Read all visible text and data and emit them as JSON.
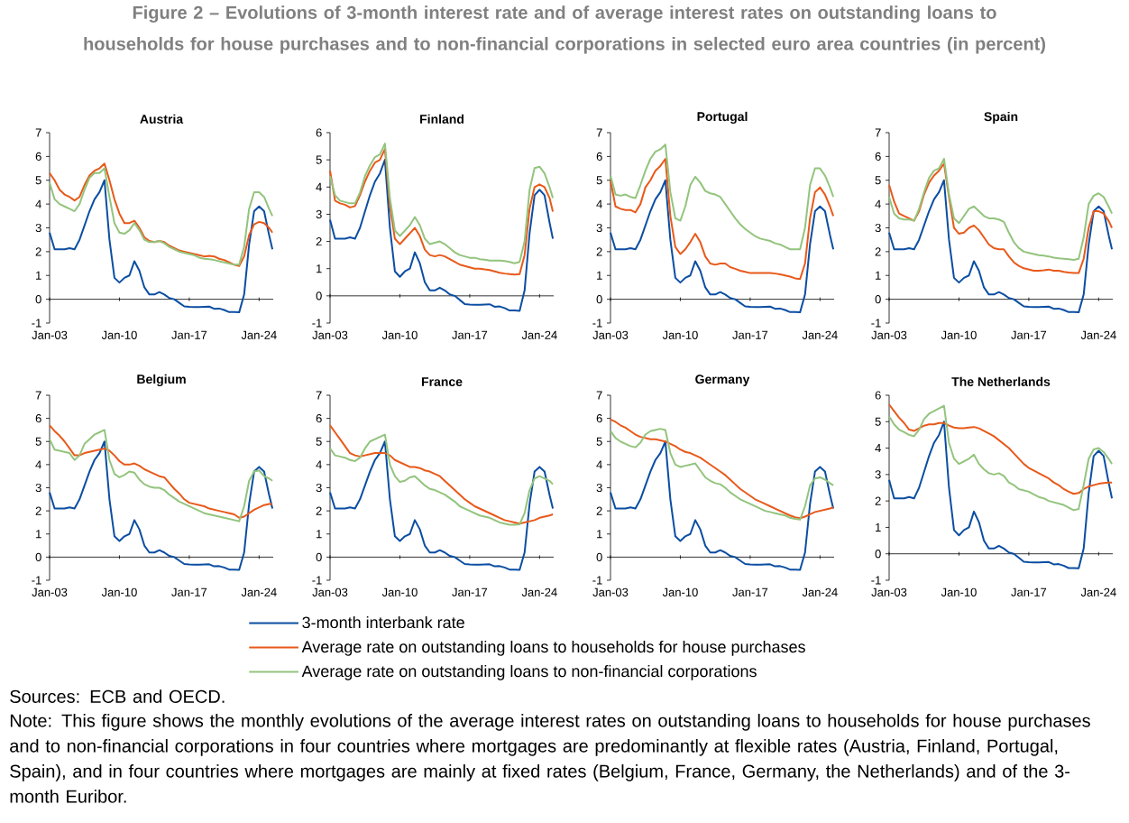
{
  "chart_data": [
    {
      "type": "line",
      "title": "Austria",
      "legend": "bottom",
      "annotations": [
        "Figure 2 – Evolutions of 3-month interest rate and of average interest rates on outstanding loans to households for house purchases and to non-financial corporations in selected euro area countries (in percent)",
        "Sources: ECB and OECD.",
        "Note: This figure shows the monthly evolutions of the average interest rates on outstanding loans to households for house purchases and to non-financial corporations in four countries where mortgages are predominantly at flexible rates (Austria, Finland, Portugal, Spain), and in four countries where mortgages are mainly at fixed rates (Belgium, France, Germany, the Netherlands) and of the 3-month Euribor."
      ],
      "xlim": [
        "2003-01",
        "2025-06"
      ],
      "ylim": [
        -1,
        7
      ],
      "yticks": [
        -1,
        0,
        1,
        2,
        3,
        4,
        5,
        6,
        7
      ],
      "xticks": [
        {
          "value": "2003-01",
          "label": "Jan-03"
        },
        {
          "value": "2010-01",
          "label": "Jan-10"
        },
        {
          "value": "2017-01",
          "label": "Jan-17"
        },
        {
          "value": "2024-01",
          "label": "Jan-24"
        }
      ],
      "x": [
        "2003-01",
        "2003-07",
        "2004-01",
        "2004-07",
        "2005-01",
        "2005-07",
        "2006-01",
        "2006-07",
        "2007-01",
        "2007-07",
        "2008-01",
        "2008-07",
        "2009-01",
        "2009-07",
        "2010-01",
        "2010-07",
        "2011-01",
        "2011-07",
        "2012-01",
        "2012-07",
        "2013-01",
        "2013-07",
        "2014-01",
        "2014-07",
        "2015-01",
        "2015-07",
        "2016-01",
        "2016-07",
        "2017-01",
        "2017-07",
        "2018-01",
        "2018-07",
        "2019-01",
        "2019-07",
        "2020-01",
        "2020-07",
        "2021-01",
        "2021-07",
        "2022-01",
        "2022-07",
        "2023-01",
        "2023-07",
        "2024-01",
        "2024-07",
        "2025-01",
        "2025-05"
      ],
      "series": [
        {
          "name": "3-month interbank rate",
          "color": "#0b4ea2",
          "values": [
            2.8,
            2.1,
            2.1,
            2.1,
            2.15,
            2.1,
            2.5,
            3.1,
            3.7,
            4.2,
            4.5,
            5.0,
            2.5,
            0.9,
            0.7,
            0.9,
            1.0,
            1.6,
            1.2,
            0.5,
            0.2,
            0.2,
            0.3,
            0.2,
            0.05,
            0.0,
            -0.15,
            -0.3,
            -0.32,
            -0.33,
            -0.33,
            -0.32,
            -0.31,
            -0.4,
            -0.39,
            -0.45,
            -0.54,
            -0.54,
            -0.55,
            0.2,
            2.3,
            3.7,
            3.9,
            3.7,
            2.7,
            2.1
          ]
        },
        {
          "name": "Average rate on outstanding loans to households for house purchases",
          "color": "#e8591a",
          "values": [
            5.3,
            5.0,
            4.6,
            4.4,
            4.3,
            4.15,
            4.3,
            4.8,
            5.2,
            5.4,
            5.5,
            5.7,
            5.0,
            4.2,
            3.6,
            3.2,
            3.2,
            3.3,
            3.0,
            2.6,
            2.45,
            2.4,
            2.45,
            2.4,
            2.25,
            2.15,
            2.05,
            2.0,
            1.95,
            1.9,
            1.85,
            1.8,
            1.82,
            1.8,
            1.7,
            1.65,
            1.55,
            1.45,
            1.4,
            1.8,
            2.7,
            3.15,
            3.25,
            3.2,
            3.0,
            2.8
          ]
        },
        {
          "name": "Average rate on outstanding loans to non-financial corporations",
          "color": "#93c47d",
          "values": [
            4.9,
            4.2,
            4.0,
            3.9,
            3.8,
            3.7,
            4.0,
            4.6,
            5.1,
            5.3,
            5.3,
            5.5,
            4.3,
            3.2,
            2.8,
            2.75,
            2.9,
            3.2,
            2.9,
            2.5,
            2.4,
            2.4,
            2.45,
            2.35,
            2.2,
            2.1,
            2.0,
            1.95,
            1.9,
            1.85,
            1.75,
            1.7,
            1.68,
            1.65,
            1.6,
            1.55,
            1.5,
            1.45,
            1.45,
            2.2,
            3.8,
            4.5,
            4.5,
            4.3,
            3.8,
            3.5
          ]
        }
      ]
    },
    {
      "type": "line",
      "title": "Finland",
      "xlim": [
        "2003-01",
        "2025-06"
      ],
      "ylim": [
        -1,
        6
      ],
      "yticks": [
        -1,
        0,
        1,
        2,
        3,
        4,
        5,
        6
      ],
      "xticks": [
        {
          "value": "2003-01",
          "label": "Jan-03"
        },
        {
          "value": "2010-01",
          "label": "Jan-10"
        },
        {
          "value": "2017-01",
          "label": "Jan-17"
        },
        {
          "value": "2024-01",
          "label": "Jan-24"
        }
      ],
      "x": [
        "2003-01",
        "2003-07",
        "2004-01",
        "2004-07",
        "2005-01",
        "2005-07",
        "2006-01",
        "2006-07",
        "2007-01",
        "2007-07",
        "2008-01",
        "2008-07",
        "2009-01",
        "2009-07",
        "2010-01",
        "2010-07",
        "2011-01",
        "2011-07",
        "2012-01",
        "2012-07",
        "2013-01",
        "2013-07",
        "2014-01",
        "2014-07",
        "2015-01",
        "2015-07",
        "2016-01",
        "2016-07",
        "2017-01",
        "2017-07",
        "2018-01",
        "2018-07",
        "2019-01",
        "2019-07",
        "2020-01",
        "2020-07",
        "2021-01",
        "2021-07",
        "2022-01",
        "2022-07",
        "2023-01",
        "2023-07",
        "2024-01",
        "2024-07",
        "2025-01",
        "2025-05"
      ],
      "series": [
        {
          "color": "#0b4ea2",
          "values": [
            2.8,
            2.1,
            2.1,
            2.1,
            2.15,
            2.1,
            2.5,
            3.1,
            3.7,
            4.2,
            4.5,
            5.0,
            2.5,
            0.9,
            0.7,
            0.9,
            1.0,
            1.6,
            1.2,
            0.5,
            0.2,
            0.2,
            0.3,
            0.2,
            0.05,
            0.0,
            -0.15,
            -0.3,
            -0.32,
            -0.33,
            -0.33,
            -0.32,
            -0.31,
            -0.4,
            -0.39,
            -0.45,
            -0.54,
            -0.54,
            -0.55,
            0.2,
            2.3,
            3.7,
            3.9,
            3.7,
            2.7,
            2.1
          ]
        },
        {
          "color": "#e8591a",
          "values": [
            4.6,
            3.5,
            3.4,
            3.35,
            3.25,
            3.3,
            3.7,
            4.2,
            4.6,
            4.9,
            5.0,
            5.4,
            3.3,
            2.1,
            1.9,
            2.1,
            2.3,
            2.5,
            2.2,
            1.7,
            1.5,
            1.45,
            1.5,
            1.45,
            1.35,
            1.25,
            1.15,
            1.1,
            1.05,
            1.0,
            1.0,
            0.97,
            0.95,
            0.9,
            0.85,
            0.82,
            0.8,
            0.78,
            0.8,
            1.5,
            3.2,
            4.0,
            4.1,
            4.0,
            3.6,
            3.1
          ]
        },
        {
          "color": "#93c47d",
          "values": [
            4.4,
            3.7,
            3.5,
            3.45,
            3.4,
            3.4,
            3.8,
            4.4,
            4.8,
            5.1,
            5.2,
            5.6,
            3.6,
            2.4,
            2.2,
            2.4,
            2.6,
            2.9,
            2.6,
            2.1,
            1.9,
            1.95,
            2.0,
            1.9,
            1.75,
            1.6,
            1.5,
            1.45,
            1.4,
            1.4,
            1.35,
            1.33,
            1.3,
            1.3,
            1.3,
            1.28,
            1.25,
            1.2,
            1.25,
            2.0,
            3.9,
            4.7,
            4.75,
            4.5,
            4.0,
            3.6
          ]
        }
      ]
    },
    {
      "type": "line",
      "title": "Portugal",
      "xlim": [
        "2003-01",
        "2025-06"
      ],
      "ylim": [
        -1,
        7
      ],
      "yticks": [
        -1,
        0,
        1,
        2,
        3,
        4,
        5,
        6,
        7
      ],
      "xticks": [
        {
          "value": "2003-01",
          "label": "Jan-03"
        },
        {
          "value": "2010-01",
          "label": "Jan-10"
        },
        {
          "value": "2017-01",
          "label": "Jan-17"
        },
        {
          "value": "2024-01",
          "label": "Jan-24"
        }
      ],
      "x": [
        "2003-01",
        "2003-07",
        "2004-01",
        "2004-07",
        "2005-01",
        "2005-07",
        "2006-01",
        "2006-07",
        "2007-01",
        "2007-07",
        "2008-01",
        "2008-07",
        "2009-01",
        "2009-07",
        "2010-01",
        "2010-07",
        "2011-01",
        "2011-07",
        "2012-01",
        "2012-07",
        "2013-01",
        "2013-07",
        "2014-01",
        "2014-07",
        "2015-01",
        "2015-07",
        "2016-01",
        "2016-07",
        "2017-01",
        "2017-07",
        "2018-01",
        "2018-07",
        "2019-01",
        "2019-07",
        "2020-01",
        "2020-07",
        "2021-01",
        "2021-07",
        "2022-01",
        "2022-07",
        "2023-01",
        "2023-07",
        "2024-01",
        "2024-07",
        "2025-01",
        "2025-05"
      ],
      "series": [
        {
          "color": "#0b4ea2",
          "values": [
            2.8,
            2.1,
            2.1,
            2.1,
            2.15,
            2.1,
            2.5,
            3.1,
            3.7,
            4.2,
            4.5,
            5.0,
            2.5,
            0.9,
            0.7,
            0.9,
            1.0,
            1.6,
            1.2,
            0.5,
            0.2,
            0.2,
            0.3,
            0.2,
            0.05,
            0.0,
            -0.15,
            -0.3,
            -0.32,
            -0.33,
            -0.33,
            -0.32,
            -0.31,
            -0.4,
            -0.39,
            -0.45,
            -0.54,
            -0.54,
            -0.55,
            0.2,
            2.3,
            3.7,
            3.9,
            3.7,
            2.7,
            2.1
          ]
        },
        {
          "color": "#e8591a",
          "values": [
            5.0,
            3.9,
            3.8,
            3.75,
            3.75,
            3.65,
            4.0,
            4.7,
            5.0,
            5.4,
            5.6,
            5.9,
            3.5,
            2.2,
            1.9,
            2.1,
            2.4,
            2.75,
            2.4,
            1.8,
            1.5,
            1.45,
            1.5,
            1.5,
            1.35,
            1.28,
            1.2,
            1.15,
            1.1,
            1.1,
            1.1,
            1.1,
            1.1,
            1.08,
            1.05,
            1.0,
            0.95,
            0.88,
            0.85,
            1.5,
            3.4,
            4.5,
            4.7,
            4.4,
            3.9,
            3.5
          ]
        },
        {
          "color": "#93c47d",
          "values": [
            5.2,
            4.4,
            4.35,
            4.4,
            4.3,
            4.25,
            4.8,
            5.4,
            5.9,
            6.2,
            6.3,
            6.5,
            4.5,
            3.4,
            3.3,
            3.9,
            4.8,
            5.15,
            4.9,
            4.55,
            4.45,
            4.4,
            4.3,
            4.0,
            3.7,
            3.4,
            3.15,
            2.95,
            2.8,
            2.65,
            2.55,
            2.5,
            2.45,
            2.35,
            2.3,
            2.2,
            2.1,
            2.1,
            2.1,
            3.0,
            4.8,
            5.5,
            5.5,
            5.2,
            4.7,
            4.3
          ]
        }
      ]
    },
    {
      "type": "line",
      "title": "Spain",
      "xlim": [
        "2003-01",
        "2025-06"
      ],
      "ylim": [
        -1,
        7
      ],
      "yticks": [
        -1,
        0,
        1,
        2,
        3,
        4,
        5,
        6,
        7
      ],
      "xticks": [
        {
          "value": "2003-01",
          "label": "Jan-03"
        },
        {
          "value": "2010-01",
          "label": "Jan-10"
        },
        {
          "value": "2017-01",
          "label": "Jan-17"
        },
        {
          "value": "2024-01",
          "label": "Jan-24"
        }
      ],
      "x": [
        "2003-01",
        "2003-07",
        "2004-01",
        "2004-07",
        "2005-01",
        "2005-07",
        "2006-01",
        "2006-07",
        "2007-01",
        "2007-07",
        "2008-01",
        "2008-07",
        "2009-01",
        "2009-07",
        "2010-01",
        "2010-07",
        "2011-01",
        "2011-07",
        "2012-01",
        "2012-07",
        "2013-01",
        "2013-07",
        "2014-01",
        "2014-07",
        "2015-01",
        "2015-07",
        "2016-01",
        "2016-07",
        "2017-01",
        "2017-07",
        "2018-01",
        "2018-07",
        "2019-01",
        "2019-07",
        "2020-01",
        "2020-07",
        "2021-01",
        "2021-07",
        "2022-01",
        "2022-07",
        "2023-01",
        "2023-07",
        "2024-01",
        "2024-07",
        "2025-01",
        "2025-05"
      ],
      "series": [
        {
          "color": "#0b4ea2",
          "values": [
            2.8,
            2.1,
            2.1,
            2.1,
            2.15,
            2.1,
            2.5,
            3.1,
            3.7,
            4.2,
            4.5,
            5.0,
            2.5,
            0.9,
            0.7,
            0.9,
            1.0,
            1.6,
            1.2,
            0.5,
            0.2,
            0.2,
            0.3,
            0.2,
            0.05,
            0.0,
            -0.15,
            -0.3,
            -0.32,
            -0.33,
            -0.33,
            -0.32,
            -0.31,
            -0.4,
            -0.39,
            -0.45,
            -0.54,
            -0.54,
            -0.55,
            0.2,
            2.3,
            3.7,
            3.9,
            3.7,
            2.7,
            2.1
          ]
        },
        {
          "color": "#e8591a",
          "values": [
            4.8,
            4.1,
            3.6,
            3.5,
            3.4,
            3.3,
            3.7,
            4.4,
            4.9,
            5.2,
            5.4,
            5.7,
            4.3,
            3.0,
            2.75,
            2.8,
            3.0,
            3.1,
            2.9,
            2.6,
            2.3,
            2.15,
            2.1,
            2.1,
            1.8,
            1.55,
            1.4,
            1.3,
            1.25,
            1.2,
            1.2,
            1.22,
            1.25,
            1.2,
            1.2,
            1.15,
            1.12,
            1.1,
            1.1,
            1.7,
            3.0,
            3.7,
            3.7,
            3.6,
            3.3,
            3.0
          ]
        },
        {
          "color": "#93c47d",
          "values": [
            4.3,
            3.6,
            3.4,
            3.35,
            3.35,
            3.3,
            3.8,
            4.5,
            5.1,
            5.4,
            5.5,
            5.9,
            4.4,
            3.4,
            3.2,
            3.5,
            3.8,
            3.9,
            3.7,
            3.5,
            3.4,
            3.4,
            3.35,
            3.25,
            2.8,
            2.4,
            2.15,
            2.0,
            1.95,
            1.9,
            1.85,
            1.83,
            1.8,
            1.75,
            1.72,
            1.7,
            1.68,
            1.65,
            1.7,
            2.6,
            4.0,
            4.35,
            4.45,
            4.3,
            3.9,
            3.6
          ]
        }
      ]
    },
    {
      "type": "line",
      "title": "Belgium",
      "xlim": [
        "2003-01",
        "2025-06"
      ],
      "ylim": [
        -1,
        7
      ],
      "yticks": [
        -1,
        0,
        1,
        2,
        3,
        4,
        5,
        6,
        7
      ],
      "xticks": [
        {
          "value": "2003-01",
          "label": "Jan-03"
        },
        {
          "value": "2010-01",
          "label": "Jan-10"
        },
        {
          "value": "2017-01",
          "label": "Jan-17"
        },
        {
          "value": "2024-01",
          "label": "Jan-24"
        }
      ],
      "x": [
        "2003-01",
        "2003-07",
        "2004-01",
        "2004-07",
        "2005-01",
        "2005-07",
        "2006-01",
        "2006-07",
        "2007-01",
        "2007-07",
        "2008-01",
        "2008-07",
        "2009-01",
        "2009-07",
        "2010-01",
        "2010-07",
        "2011-01",
        "2011-07",
        "2012-01",
        "2012-07",
        "2013-01",
        "2013-07",
        "2014-01",
        "2014-07",
        "2015-01",
        "2015-07",
        "2016-01",
        "2016-07",
        "2017-01",
        "2017-07",
        "2018-01",
        "2018-07",
        "2019-01",
        "2019-07",
        "2020-01",
        "2020-07",
        "2021-01",
        "2021-07",
        "2022-01",
        "2022-07",
        "2023-01",
        "2023-07",
        "2024-01",
        "2024-07",
        "2025-01",
        "2025-05"
      ],
      "series": [
        {
          "color": "#0b4ea2",
          "values": [
            2.8,
            2.1,
            2.1,
            2.1,
            2.15,
            2.1,
            2.5,
            3.1,
            3.7,
            4.2,
            4.5,
            5.0,
            2.5,
            0.9,
            0.7,
            0.9,
            1.0,
            1.6,
            1.2,
            0.5,
            0.2,
            0.2,
            0.3,
            0.2,
            0.05,
            0.0,
            -0.15,
            -0.3,
            -0.32,
            -0.33,
            -0.33,
            -0.32,
            -0.31,
            -0.4,
            -0.39,
            -0.45,
            -0.54,
            -0.54,
            -0.55,
            0.2,
            2.3,
            3.7,
            3.9,
            3.7,
            2.7,
            2.1
          ]
        },
        {
          "color": "#e8591a",
          "values": [
            5.7,
            5.45,
            5.25,
            5.0,
            4.7,
            4.4,
            4.4,
            4.5,
            4.55,
            4.6,
            4.65,
            4.7,
            4.6,
            4.4,
            4.15,
            4.0,
            4.0,
            4.05,
            3.95,
            3.8,
            3.7,
            3.6,
            3.5,
            3.45,
            3.2,
            2.95,
            2.75,
            2.5,
            2.35,
            2.3,
            2.25,
            2.2,
            2.1,
            2.05,
            2.0,
            1.95,
            1.9,
            1.85,
            1.7,
            1.75,
            1.9,
            2.05,
            2.15,
            2.25,
            2.3,
            2.3
          ]
        },
        {
          "color": "#93c47d",
          "values": [
            5.1,
            4.65,
            4.6,
            4.55,
            4.5,
            4.2,
            4.4,
            4.9,
            5.1,
            5.3,
            5.4,
            5.5,
            4.2,
            3.6,
            3.45,
            3.55,
            3.7,
            3.65,
            3.35,
            3.15,
            3.05,
            3.0,
            3.0,
            2.9,
            2.7,
            2.55,
            2.4,
            2.3,
            2.2,
            2.1,
            2.0,
            1.9,
            1.85,
            1.8,
            1.75,
            1.7,
            1.65,
            1.6,
            1.55,
            2.2,
            3.3,
            3.7,
            3.75,
            3.5,
            3.4,
            3.3
          ]
        }
      ]
    },
    {
      "type": "line",
      "title": "France",
      "xlim": [
        "2003-01",
        "2025-06"
      ],
      "ylim": [
        -1,
        7
      ],
      "yticks": [
        -1,
        0,
        1,
        2,
        3,
        4,
        5,
        6,
        7
      ],
      "xticks": [
        {
          "value": "2003-01",
          "label": "Jan-03"
        },
        {
          "value": "2010-01",
          "label": "Jan-10"
        },
        {
          "value": "2017-01",
          "label": "Jan-17"
        },
        {
          "value": "2024-01",
          "label": "Jan-24"
        }
      ],
      "x": [
        "2003-01",
        "2003-07",
        "2004-01",
        "2004-07",
        "2005-01",
        "2005-07",
        "2006-01",
        "2006-07",
        "2007-01",
        "2007-07",
        "2008-01",
        "2008-07",
        "2009-01",
        "2009-07",
        "2010-01",
        "2010-07",
        "2011-01",
        "2011-07",
        "2012-01",
        "2012-07",
        "2013-01",
        "2013-07",
        "2014-01",
        "2014-07",
        "2015-01",
        "2015-07",
        "2016-01",
        "2016-07",
        "2017-01",
        "2017-07",
        "2018-01",
        "2018-07",
        "2019-01",
        "2019-07",
        "2020-01",
        "2020-07",
        "2021-01",
        "2021-07",
        "2022-01",
        "2022-07",
        "2023-01",
        "2023-07",
        "2024-01",
        "2024-07",
        "2025-01",
        "2025-05"
      ],
      "series": [
        {
          "color": "#0b4ea2",
          "values": [
            2.8,
            2.1,
            2.1,
            2.1,
            2.15,
            2.1,
            2.5,
            3.1,
            3.7,
            4.2,
            4.5,
            5.0,
            2.5,
            0.9,
            0.7,
            0.9,
            1.0,
            1.6,
            1.2,
            0.5,
            0.2,
            0.2,
            0.3,
            0.2,
            0.05,
            0.0,
            -0.15,
            -0.3,
            -0.32,
            -0.33,
            -0.33,
            -0.32,
            -0.31,
            -0.4,
            -0.39,
            -0.45,
            -0.54,
            -0.54,
            -0.55,
            0.2,
            2.3,
            3.7,
            3.9,
            3.7,
            2.7,
            2.1
          ]
        },
        {
          "color": "#e8591a",
          "values": [
            5.7,
            5.4,
            5.1,
            4.8,
            4.5,
            4.4,
            4.35,
            4.4,
            4.45,
            4.5,
            4.5,
            4.5,
            4.4,
            4.2,
            4.1,
            4.0,
            3.9,
            3.9,
            3.85,
            3.75,
            3.7,
            3.6,
            3.5,
            3.3,
            3.1,
            2.9,
            2.7,
            2.5,
            2.35,
            2.2,
            2.1,
            2.0,
            1.9,
            1.8,
            1.7,
            1.6,
            1.55,
            1.5,
            1.45,
            1.5,
            1.55,
            1.6,
            1.7,
            1.75,
            1.8,
            1.85
          ]
        },
        {
          "color": "#93c47d",
          "values": [
            4.7,
            4.4,
            4.35,
            4.3,
            4.2,
            4.15,
            4.3,
            4.7,
            5.0,
            5.1,
            5.2,
            5.3,
            4.0,
            3.5,
            3.25,
            3.3,
            3.45,
            3.5,
            3.3,
            3.1,
            2.95,
            2.9,
            2.8,
            2.7,
            2.55,
            2.4,
            2.2,
            2.1,
            2.0,
            1.9,
            1.8,
            1.75,
            1.7,
            1.6,
            1.5,
            1.45,
            1.4,
            1.4,
            1.42,
            1.9,
            2.9,
            3.4,
            3.5,
            3.4,
            3.3,
            3.15
          ]
        }
      ]
    },
    {
      "type": "line",
      "title": "Germany",
      "xlim": [
        "2003-01",
        "2025-06"
      ],
      "ylim": [
        -1,
        7
      ],
      "yticks": [
        -1,
        0,
        1,
        2,
        3,
        4,
        5,
        6,
        7
      ],
      "xticks": [
        {
          "value": "2003-01",
          "label": "Jan-03"
        },
        {
          "value": "2010-01",
          "label": "Jan-10"
        },
        {
          "value": "2017-01",
          "label": "Jan-17"
        },
        {
          "value": "2024-01",
          "label": "Jan-24"
        }
      ],
      "x": [
        "2003-01",
        "2003-07",
        "2004-01",
        "2004-07",
        "2005-01",
        "2005-07",
        "2006-01",
        "2006-07",
        "2007-01",
        "2007-07",
        "2008-01",
        "2008-07",
        "2009-01",
        "2009-07",
        "2010-01",
        "2010-07",
        "2011-01",
        "2011-07",
        "2012-01",
        "2012-07",
        "2013-01",
        "2013-07",
        "2014-01",
        "2014-07",
        "2015-01",
        "2015-07",
        "2016-01",
        "2016-07",
        "2017-01",
        "2017-07",
        "2018-01",
        "2018-07",
        "2019-01",
        "2019-07",
        "2020-01",
        "2020-07",
        "2021-01",
        "2021-07",
        "2022-01",
        "2022-07",
        "2023-01",
        "2023-07",
        "2024-01",
        "2024-07",
        "2025-01",
        "2025-05"
      ],
      "series": [
        {
          "color": "#0b4ea2",
          "values": [
            2.8,
            2.1,
            2.1,
            2.1,
            2.15,
            2.1,
            2.5,
            3.1,
            3.7,
            4.2,
            4.5,
            5.0,
            2.5,
            0.9,
            0.7,
            0.9,
            1.0,
            1.6,
            1.2,
            0.5,
            0.2,
            0.2,
            0.3,
            0.2,
            0.05,
            0.0,
            -0.15,
            -0.3,
            -0.32,
            -0.33,
            -0.33,
            -0.32,
            -0.31,
            -0.4,
            -0.39,
            -0.45,
            -0.54,
            -0.54,
            -0.55,
            0.2,
            2.3,
            3.7,
            3.9,
            3.7,
            2.7,
            2.1
          ]
        },
        {
          "color": "#e8591a",
          "values": [
            5.95,
            5.85,
            5.7,
            5.6,
            5.45,
            5.3,
            5.2,
            5.15,
            5.1,
            5.1,
            5.05,
            5.0,
            4.9,
            4.8,
            4.65,
            4.55,
            4.5,
            4.4,
            4.3,
            4.15,
            4.0,
            3.85,
            3.7,
            3.55,
            3.35,
            3.15,
            2.95,
            2.8,
            2.65,
            2.5,
            2.4,
            2.3,
            2.2,
            2.1,
            2.0,
            1.9,
            1.8,
            1.72,
            1.68,
            1.75,
            1.85,
            1.95,
            2.0,
            2.05,
            2.1,
            2.15
          ]
        },
        {
          "color": "#93c47d",
          "values": [
            5.45,
            5.15,
            5.0,
            4.9,
            4.8,
            4.75,
            4.95,
            5.3,
            5.45,
            5.5,
            5.55,
            5.5,
            4.5,
            4.0,
            3.9,
            3.95,
            4.0,
            4.05,
            3.75,
            3.45,
            3.3,
            3.2,
            3.15,
            3.0,
            2.8,
            2.65,
            2.5,
            2.4,
            2.3,
            2.2,
            2.1,
            2.0,
            1.95,
            1.9,
            1.85,
            1.8,
            1.7,
            1.65,
            1.62,
            2.2,
            3.1,
            3.4,
            3.45,
            3.35,
            3.2,
            3.1
          ]
        }
      ]
    },
    {
      "type": "line",
      "title": "The Netherlands",
      "xlim": [
        "2003-01",
        "2025-06"
      ],
      "ylim": [
        -1,
        6
      ],
      "yticks": [
        -1,
        0,
        1,
        2,
        3,
        4,
        5,
        6
      ],
      "xticks": [
        {
          "value": "2003-01",
          "label": "Jan-03"
        },
        {
          "value": "2010-01",
          "label": "Jan-10"
        },
        {
          "value": "2017-01",
          "label": "Jan-17"
        },
        {
          "value": "2024-01",
          "label": "Jan-24"
        }
      ],
      "x": [
        "2003-01",
        "2003-07",
        "2004-01",
        "2004-07",
        "2005-01",
        "2005-07",
        "2006-01",
        "2006-07",
        "2007-01",
        "2007-07",
        "2008-01",
        "2008-07",
        "2009-01",
        "2009-07",
        "2010-01",
        "2010-07",
        "2011-01",
        "2011-07",
        "2012-01",
        "2012-07",
        "2013-01",
        "2013-07",
        "2014-01",
        "2014-07",
        "2015-01",
        "2015-07",
        "2016-01",
        "2016-07",
        "2017-01",
        "2017-07",
        "2018-01",
        "2018-07",
        "2019-01",
        "2019-07",
        "2020-01",
        "2020-07",
        "2021-01",
        "2021-07",
        "2022-01",
        "2022-07",
        "2023-01",
        "2023-07",
        "2024-01",
        "2024-07",
        "2025-01",
        "2025-05"
      ],
      "series": [
        {
          "color": "#0b4ea2",
          "values": [
            2.8,
            2.1,
            2.1,
            2.1,
            2.15,
            2.1,
            2.5,
            3.1,
            3.7,
            4.2,
            4.5,
            5.0,
            2.5,
            0.9,
            0.7,
            0.9,
            1.0,
            1.6,
            1.2,
            0.5,
            0.2,
            0.2,
            0.3,
            0.2,
            0.05,
            0.0,
            -0.15,
            -0.3,
            -0.32,
            -0.33,
            -0.33,
            -0.32,
            -0.31,
            -0.4,
            -0.39,
            -0.45,
            -0.54,
            -0.54,
            -0.55,
            0.2,
            2.3,
            3.7,
            3.9,
            3.7,
            2.7,
            2.1
          ]
        },
        {
          "color": "#e8591a",
          "values": [
            5.65,
            5.4,
            5.15,
            4.95,
            4.7,
            4.65,
            4.75,
            4.85,
            4.9,
            4.9,
            4.95,
            4.95,
            4.85,
            4.78,
            4.75,
            4.75,
            4.78,
            4.8,
            4.75,
            4.65,
            4.55,
            4.45,
            4.3,
            4.15,
            4.0,
            3.8,
            3.6,
            3.4,
            3.25,
            3.15,
            3.05,
            2.95,
            2.85,
            2.7,
            2.6,
            2.45,
            2.35,
            2.27,
            2.3,
            2.45,
            2.55,
            2.6,
            2.65,
            2.68,
            2.7,
            2.7
          ]
        },
        {
          "color": "#93c47d",
          "values": [
            5.2,
            4.9,
            4.7,
            4.6,
            4.5,
            4.45,
            4.7,
            5.1,
            5.3,
            5.4,
            5.5,
            5.6,
            4.2,
            3.6,
            3.4,
            3.5,
            3.6,
            3.75,
            3.4,
            3.2,
            3.05,
            3.0,
            3.05,
            2.95,
            2.7,
            2.6,
            2.45,
            2.4,
            2.35,
            2.25,
            2.15,
            2.1,
            2.0,
            1.95,
            1.9,
            1.85,
            1.75,
            1.65,
            1.7,
            2.6,
            3.6,
            3.95,
            4.0,
            3.85,
            3.6,
            3.4
          ]
        }
      ]
    }
  ]
}
